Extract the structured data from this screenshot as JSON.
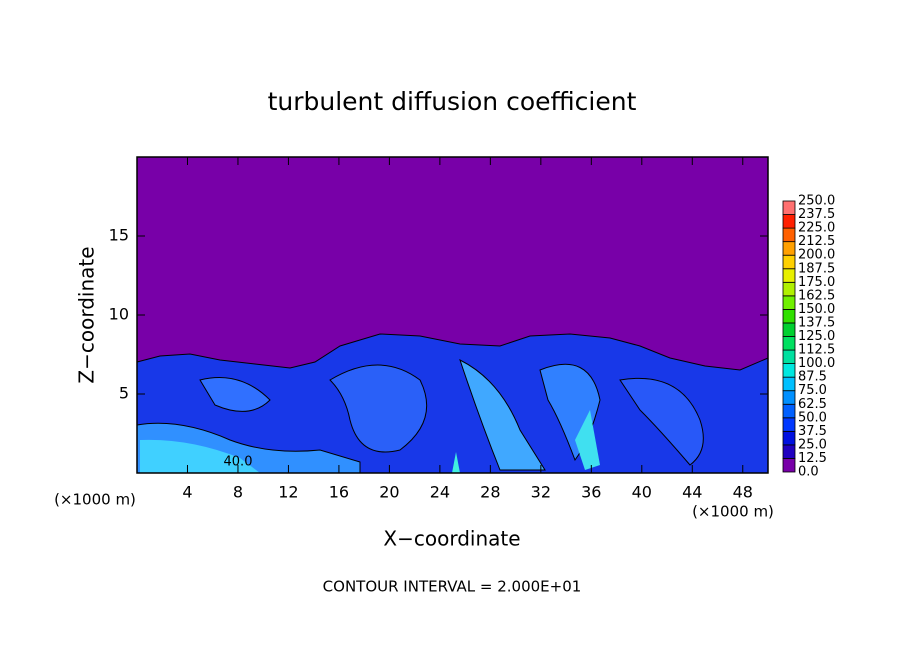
{
  "chart_data": {
    "type": "contour",
    "title": "turbulent diffusion coefficient",
    "x_label": "X−coordinate",
    "y_label": "Z−coordinate",
    "x_unit": "(×1000 m)",
    "x2_unit": "(×1000 m)",
    "footnote": "CONTOUR INTERVAL = 2.000E+01",
    "annotation": "40.0",
    "xlim": [
      0,
      50
    ],
    "xticks": [
      4,
      8,
      12,
      16,
      20,
      24,
      28,
      32,
      36,
      40,
      44,
      48
    ],
    "ylim": [
      0,
      20
    ],
    "yticks": [
      5,
      10,
      15
    ],
    "colorbar": {
      "levels": [
        {
          "value": 0,
          "label": "0.0"
        },
        12.5,
        {
          "value": 25,
          "label": "25.0"
        },
        37.5,
        {
          "value": 50,
          "label": "50.0"
        },
        62.5,
        {
          "value": 75,
          "label": "75.0"
        },
        87.5,
        {
          "value": 100,
          "label": "100.0"
        },
        112.5,
        {
          "value": 125,
          "label": "125.0"
        },
        137.5,
        {
          "value": 150,
          "label": "150.0"
        },
        162.5,
        {
          "value": 175,
          "label": "175.0"
        },
        187.5,
        {
          "value": 200,
          "label": "200.0"
        },
        212.5,
        {
          "value": 225,
          "label": "225.0"
        },
        237.5,
        {
          "value": 250,
          "label": "250.0"
        }
      ],
      "colors": [
        "#7800a8",
        "#2000c0",
        "#0010e0",
        "#0038ff",
        "#0060ff",
        "#0090ff",
        "#00c0ff",
        "#00e8e0",
        "#00e0a0",
        "#00e060",
        "#00d030",
        "#30e000",
        "#70f000",
        "#b0f000",
        "#e8f000",
        "#ffd000",
        "#ffa000",
        "#ff6000",
        "#ff2000",
        "#ff7070"
      ]
    }
  }
}
